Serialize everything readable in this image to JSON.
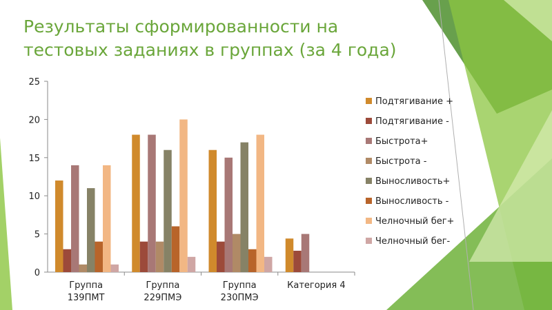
{
  "slide": {
    "title": "Результаты сформированности  на\nтестовых заданиях в  группах (за 4 года)"
  },
  "chart_data": {
    "type": "bar",
    "categories": [
      [
        "Группа",
        "139ПМТ"
      ],
      [
        "Группа",
        "229ПМЭ"
      ],
      [
        "Группа",
        "230ПМЭ"
      ],
      [
        "Категория 4"
      ]
    ],
    "series": [
      {
        "name": "Подтягивание +",
        "color": "#d08a2c",
        "values": [
          12,
          18,
          16,
          4.4
        ]
      },
      {
        "name": "Подтягивание -",
        "color": "#9c4a3a",
        "values": [
          3,
          4,
          4,
          2.8
        ]
      },
      {
        "name": "Быстрота+",
        "color": "#a87876",
        "values": [
          14,
          18,
          15,
          5
        ]
      },
      {
        "name": "Быстрота -",
        "color": "#b08a66",
        "values": [
          1,
          4,
          5,
          null
        ]
      },
      {
        "name": "Выносливость+",
        "color": "#868266",
        "values": [
          11,
          16,
          17,
          null
        ]
      },
      {
        "name": "Выносливость -",
        "color": "#b8642a",
        "values": [
          4,
          6,
          3,
          null
        ]
      },
      {
        "name": "Челночный бег+",
        "color": "#f2b784",
        "values": [
          14,
          20,
          18,
          null
        ]
      },
      {
        "name": "Челночный бег-",
        "color": "#cfa6a4",
        "values": [
          1,
          2,
          2,
          null
        ]
      }
    ],
    "ylim": [
      0,
      25
    ],
    "yticks": [
      0,
      5,
      10,
      15,
      20,
      25
    ],
    "grid": false,
    "legend": "right"
  }
}
